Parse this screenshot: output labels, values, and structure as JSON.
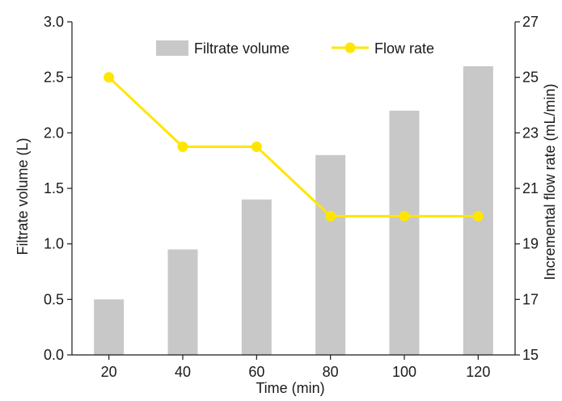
{
  "chart_data": {
    "type": "bar+line",
    "categories": [
      "20",
      "40",
      "60",
      "80",
      "100",
      "120"
    ],
    "xlabel": "Time (min)",
    "series": [
      {
        "name": "Filtrate volume",
        "type": "bar",
        "axis": "left",
        "values": [
          0.5,
          0.95,
          1.4,
          1.8,
          2.2,
          2.6
        ],
        "color": "#c8c8c8"
      },
      {
        "name": "Flow rate",
        "type": "line",
        "axis": "right",
        "values": [
          25,
          22.5,
          22.5,
          20,
          20,
          20
        ],
        "color": "#ffe600"
      }
    ],
    "y_left": {
      "label": "Filtrate volume (L)",
      "lim": [
        0,
        3.0
      ],
      "ticks": [
        "0.0",
        "0.5",
        "1.0",
        "1.5",
        "2.0",
        "2.5",
        "3.0"
      ]
    },
    "y_right": {
      "label": "Incremental flow rate (mL/min)",
      "lim": [
        15,
        27
      ],
      "ticks": [
        "15",
        "17",
        "19",
        "21",
        "23",
        "25",
        "27"
      ]
    },
    "legend_position": "top-center",
    "grid": false
  }
}
